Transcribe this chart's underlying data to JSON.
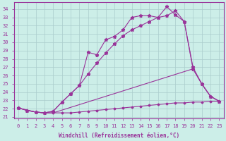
{
  "xlabel": "Windchill (Refroidissement éolien,°C)",
  "xlim": [
    -0.5,
    23.5
  ],
  "ylim": [
    20.8,
    34.8
  ],
  "yticks": [
    21,
    22,
    23,
    24,
    25,
    26,
    27,
    28,
    29,
    30,
    31,
    32,
    33,
    34
  ],
  "xticks": [
    0,
    1,
    2,
    3,
    4,
    5,
    6,
    7,
    8,
    9,
    10,
    11,
    12,
    13,
    14,
    15,
    16,
    17,
    18,
    19,
    20,
    21,
    22,
    23
  ],
  "bg_color": "#cceee8",
  "grid_color": "#aacccc",
  "line_color": "#993399",
  "line1_x": [
    0,
    1,
    2,
    3,
    4,
    5,
    6,
    7,
    8,
    9,
    10,
    11,
    12,
    13,
    14,
    15,
    16,
    17,
    18,
    19,
    20,
    21,
    22,
    23
  ],
  "line1_y": [
    22.1,
    21.8,
    21.6,
    21.5,
    21.5,
    21.5,
    21.5,
    21.6,
    21.7,
    21.8,
    21.9,
    22.0,
    22.1,
    22.2,
    22.3,
    22.4,
    22.5,
    22.6,
    22.7,
    22.7,
    22.8,
    22.8,
    22.9,
    22.9
  ],
  "line2_x": [
    0,
    2,
    3,
    4,
    20,
    21,
    22,
    23
  ],
  "line2_y": [
    22.1,
    21.6,
    21.5,
    21.5,
    26.8,
    25.0,
    23.5,
    22.9
  ],
  "line3_x": [
    0,
    1,
    2,
    3,
    4,
    5,
    6,
    7,
    8,
    9,
    10,
    11,
    12,
    13,
    14,
    15,
    16,
    17,
    18,
    19,
    20,
    21,
    22,
    23
  ],
  "line3_y": [
    22.1,
    21.8,
    21.6,
    21.5,
    21.7,
    22.8,
    23.8,
    24.8,
    26.2,
    27.5,
    28.7,
    29.8,
    30.8,
    31.5,
    32.0,
    32.5,
    33.0,
    33.2,
    33.8,
    32.5,
    26.8,
    25.0,
    23.5,
    22.9
  ],
  "line4_x": [
    0,
    1,
    2,
    3,
    4,
    5,
    6,
    7,
    8,
    9,
    10,
    11,
    12,
    13,
    14,
    15,
    16,
    17,
    18,
    19,
    20,
    21,
    22,
    23
  ],
  "line4_y": [
    22.1,
    21.8,
    21.6,
    21.5,
    21.7,
    22.8,
    23.8,
    24.8,
    28.8,
    28.5,
    30.3,
    30.7,
    31.5,
    33.0,
    33.2,
    33.2,
    33.0,
    34.3,
    33.3,
    32.5,
    27.0,
    25.0,
    23.5,
    22.9
  ]
}
